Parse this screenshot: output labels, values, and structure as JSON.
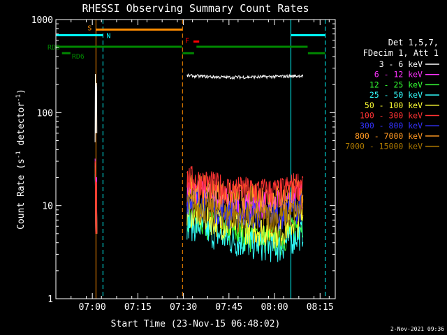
{
  "chart_data": {
    "type": "line",
    "title": "RHESSI Observing Summary Count Rates",
    "xlabel": "Start Time (23-Nov-15 06:48:02)",
    "ylabel_main": "Count Rate (s",
    "ylabel_sup1": "-1",
    "ylabel_mid": " detector",
    "ylabel_sup2": "-1",
    "ylabel_end": ")",
    "yscale": "log",
    "ylim": [
      1,
      1000
    ],
    "xlim_min": [
      48,
      140
    ],
    "xticks": [
      {
        "min": 60,
        "label": "07:00"
      },
      {
        "min": 75,
        "label": "07:15"
      },
      {
        "min": 90,
        "label": "07:30"
      },
      {
        "min": 105,
        "label": "07:45"
      },
      {
        "min": 120,
        "label": "08:00"
      },
      {
        "min": 135,
        "label": "08:15"
      }
    ],
    "yticks": [
      {
        "value": 1,
        "label": "1"
      },
      {
        "value": 10,
        "label": "10"
      },
      {
        "value": 100,
        "label": "100"
      },
      {
        "value": 1000,
        "label": "1000"
      }
    ],
    "legend_header": [
      "Det 1,5,7,",
      "FDecim 1, Att 1"
    ],
    "series": [
      {
        "name": "3 - 6 keV",
        "color": "#ffffff",
        "seg1": [
          48,
          260,
          60,
          180
        ],
        "seg2": [
          250,
          240,
          245,
          250
        ]
      },
      {
        "name": "6 - 12 keV",
        "color": "#ff33ff",
        "seg1": [
          32,
          25,
          5,
          20
        ],
        "seg2": [
          16,
          12,
          11,
          14
        ]
      },
      {
        "name": "12 - 25 keV",
        "color": "#33ff33",
        "seg1": [
          27,
          20,
          5,
          15
        ],
        "seg2": [
          8.5,
          5.5,
          4.5,
          7
        ]
      },
      {
        "name": "25 - 50 keV",
        "color": "#33ffff",
        "seg1": [
          22,
          16,
          5,
          12
        ],
        "seg2": [
          7,
          4.5,
          3.8,
          5.5
        ]
      },
      {
        "name": "50 - 100 keV",
        "color": "#ffff33",
        "seg1": [
          24,
          18,
          5,
          13
        ],
        "seg2": [
          9.5,
          6.5,
          5.5,
          8
        ]
      },
      {
        "name": "100 - 300 keV",
        "color": "#ff3333",
        "seg1": [
          30,
          22,
          5,
          18
        ],
        "seg2": [
          21,
          16,
          15,
          19
        ]
      },
      {
        "name": "300 - 800 keV",
        "color": "#3333ff",
        "seg1": [
          26,
          19,
          5,
          14
        ],
        "seg2": [
          13,
          9,
          8.5,
          11
        ]
      },
      {
        "name": "800 - 7000 keV",
        "color": "#ff9922",
        "seg1": [
          29,
          21,
          5,
          17
        ],
        "seg2": [
          18,
          13.5,
          13,
          16
        ]
      },
      {
        "name": "7000 - 15000 keV",
        "color": "#aa7700",
        "seg1": [
          25,
          18,
          5,
          13
        ],
        "seg2": [
          11,
          8.5,
          8,
          10
        ]
      }
    ],
    "state_bars": [
      {
        "label": "S",
        "color": "#ff8c00",
        "start": 61.2,
        "end": 89.7,
        "level": 780
      },
      {
        "label": "N",
        "color": "#00ffff",
        "start": 48,
        "end": 63.5,
        "level": 680
      },
      {
        "label": "N",
        "color": "#00ffff",
        "start": 125.4,
        "end": 136.7,
        "level": 680
      },
      {
        "label": "F",
        "color": "#ff0000",
        "start": 93.3,
        "end": 95.2,
        "level": 580
      },
      {
        "label": "RD0",
        "color": "#008800",
        "start": 48,
        "end": 89.5,
        "level": 510
      },
      {
        "label": "RD0",
        "color": "#008800",
        "start": 94.3,
        "end": 130.9,
        "level": 510
      },
      {
        "label": "RD6",
        "color": "#008800",
        "start": 50,
        "end": 52.8,
        "level": 435
      },
      {
        "label": "RD6",
        "color": "#008800",
        "start": 89.7,
        "end": 93.5,
        "level": 435
      },
      {
        "label": "RD6",
        "color": "#008800",
        "start": 131,
        "end": 136.7,
        "level": 435
      }
    ],
    "vlines": [
      {
        "min": 48,
        "color": "#00ffff",
        "dashed": false
      },
      {
        "min": 61.2,
        "color": "#ff8c00",
        "dashed": false
      },
      {
        "min": 63.5,
        "color": "#00ffff",
        "dashed": true
      },
      {
        "min": 89.7,
        "color": "#ff8c00",
        "dashed": true
      },
      {
        "min": 125.4,
        "color": "#00ffff",
        "dashed": false
      },
      {
        "min": 136.7,
        "color": "#00ffff",
        "dashed": true
      }
    ]
  },
  "timestamp": "2-Nov-2021 09:36"
}
